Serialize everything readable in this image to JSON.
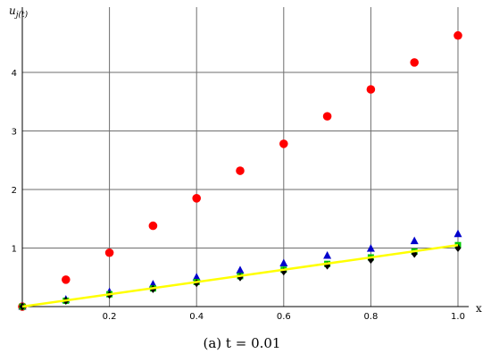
{
  "chart_data": {
    "type": "scatter",
    "title": "",
    "caption": "(a) t = 0.01",
    "xlabel": "x",
    "ylabel": "u j(t)",
    "xlim": [
      0,
      1.0
    ],
    "ylim": [
      0,
      4.7
    ],
    "x_ticks": [
      "0.2",
      "0.4",
      "0.6",
      "0.8",
      "1.0"
    ],
    "y_ticks": [
      "1",
      "2",
      "3",
      "4"
    ],
    "grid": true,
    "series": [
      {
        "marker": "circle",
        "color": "#ff0000",
        "x": [
          0,
          0.1,
          0.2,
          0.3,
          0.4,
          0.5,
          0.6,
          0.7,
          0.8,
          0.9,
          1.0
        ],
        "y": [
          0,
          0.46,
          0.92,
          1.38,
          1.85,
          2.32,
          2.78,
          3.25,
          3.71,
          4.17,
          4.63
        ]
      },
      {
        "marker": "triangle",
        "color": "#0000cc",
        "x": [
          0,
          0.1,
          0.2,
          0.3,
          0.4,
          0.5,
          0.6,
          0.7,
          0.8,
          0.9,
          1.0
        ],
        "y": [
          0,
          0.12,
          0.25,
          0.38,
          0.5,
          0.62,
          0.74,
          0.87,
          0.99,
          1.12,
          1.24
        ]
      },
      {
        "marker": "square",
        "color": "#00cc00",
        "x": [
          0,
          0.1,
          0.2,
          0.3,
          0.4,
          0.5,
          0.6,
          0.7,
          0.8,
          0.9,
          1.0
        ],
        "y": [
          0,
          0.1,
          0.21,
          0.31,
          0.42,
          0.52,
          0.63,
          0.73,
          0.84,
          0.94,
          1.05
        ]
      },
      {
        "marker": "diamond",
        "color": "#000000",
        "x": [
          0,
          0.1,
          0.2,
          0.3,
          0.4,
          0.5,
          0.6,
          0.7,
          0.8,
          0.9,
          1.0
        ],
        "y": [
          0,
          0.1,
          0.2,
          0.3,
          0.4,
          0.5,
          0.6,
          0.7,
          0.8,
          0.9,
          1.0
        ]
      },
      {
        "marker": "line",
        "color": "#ffff00",
        "x": [
          0,
          1.0
        ],
        "y": [
          0,
          1.05
        ]
      }
    ]
  }
}
